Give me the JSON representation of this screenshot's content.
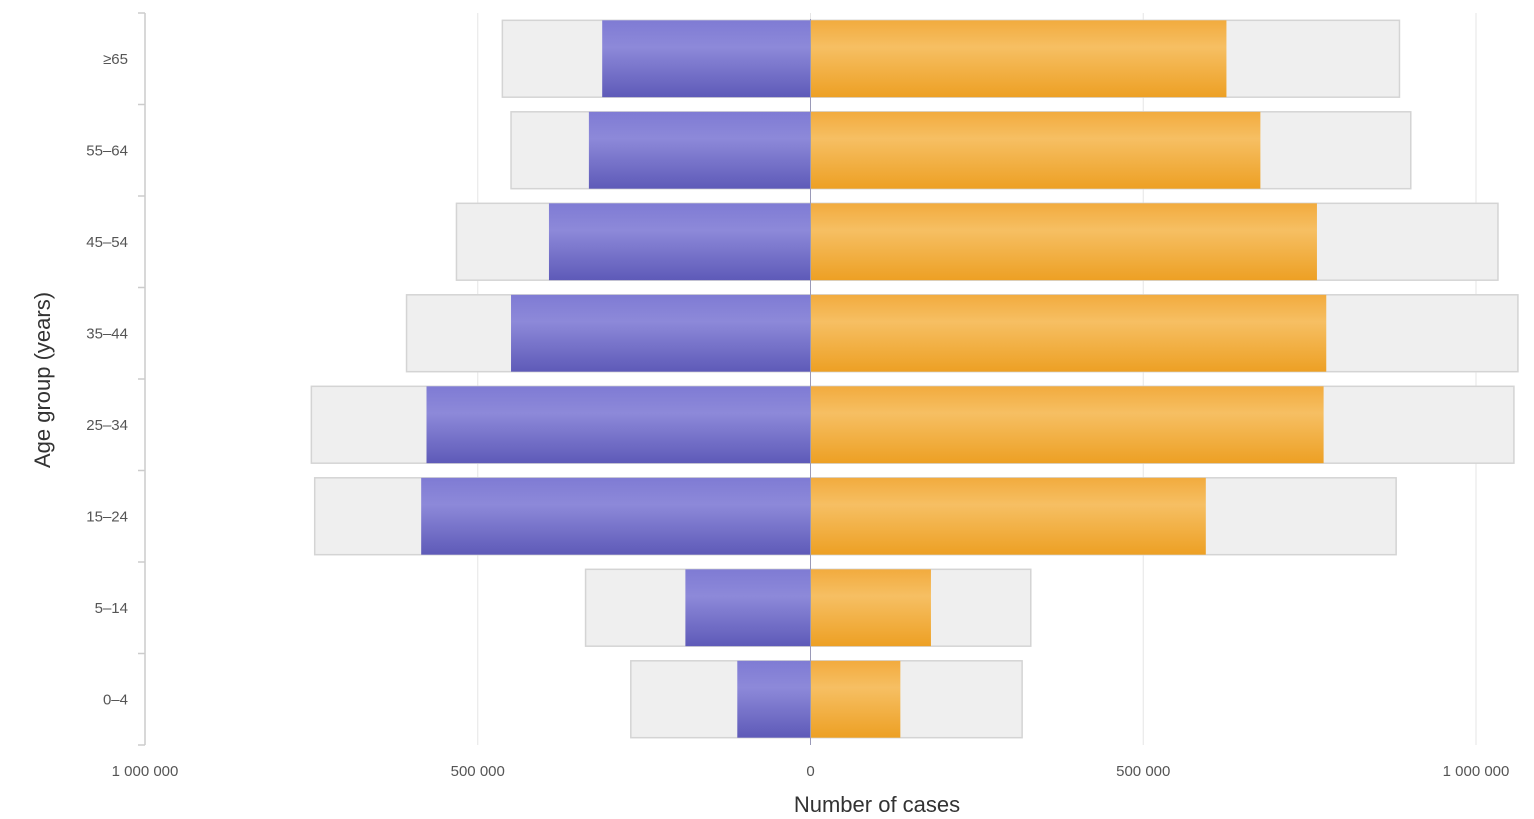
{
  "chart_data": {
    "type": "bar",
    "orientation": "horizontal",
    "layout": "population-pyramid",
    "categories": [
      "0–4",
      "5–14",
      "15–24",
      "25–34",
      "35–44",
      "45–54",
      "55–64",
      "≥65"
    ],
    "series": [
      {
        "side": "left",
        "kind": "estimate",
        "values": [
          270000,
          338000,
          745000,
          750000,
          607000,
          532000,
          450000,
          463000
        ]
      },
      {
        "side": "left",
        "kind": "notified",
        "values": [
          110000,
          188000,
          585000,
          577000,
          450000,
          393000,
          333000,
          313000
        ]
      },
      {
        "side": "right",
        "kind": "estimate",
        "values": [
          318000,
          331000,
          880000,
          1057000,
          1063000,
          1033000,
          902000,
          885000
        ]
      },
      {
        "side": "right",
        "kind": "notified",
        "values": [
          135000,
          181000,
          594000,
          771000,
          775000,
          761000,
          676000,
          625000
        ]
      }
    ],
    "xlabel": "Number of cases",
    "ylabel": "Age group (years)",
    "xticks": [
      "1 000 000",
      "500 000",
      "0",
      "500 000",
      "1 000 000"
    ],
    "xlim": [
      -1000000,
      1000000
    ],
    "grid": true,
    "colors": {
      "left_notified": "#6f6bc9",
      "right_notified": "#f2a93b",
      "estimate": "#efefef",
      "estimate_border": "#d4d4d4",
      "grid": "#e6e6e6",
      "axis": "#cccccc"
    }
  }
}
